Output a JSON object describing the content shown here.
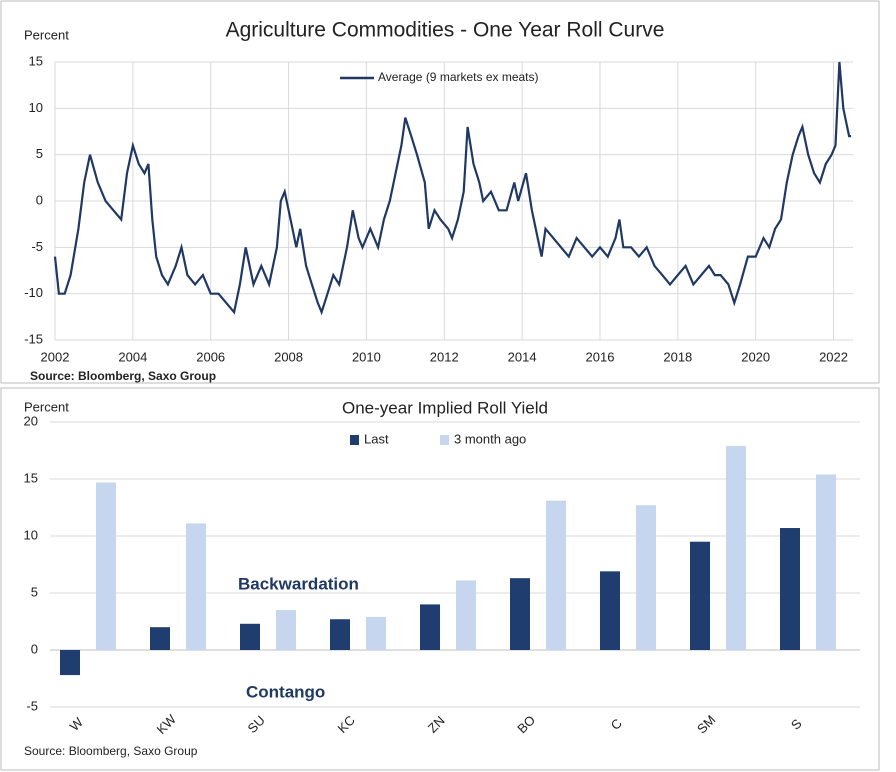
{
  "chart_data": [
    {
      "type": "line",
      "title": "Agriculture Commodities - One Year Roll Curve",
      "y_label": "Percent",
      "source": "Source: Bloomberg, Saxo Group",
      "x": [
        2002.0,
        2002.1,
        2002.25,
        2002.4,
        2002.6,
        2002.75,
        2002.9,
        2003.1,
        2003.3,
        2003.5,
        2003.7,
        2003.85,
        2004.0,
        2004.15,
        2004.3,
        2004.4,
        2004.5,
        2004.6,
        2004.75,
        2004.9,
        2005.1,
        2005.25,
        2005.4,
        2005.6,
        2005.8,
        2006.0,
        2006.2,
        2006.4,
        2006.6,
        2006.75,
        2006.9,
        2007.1,
        2007.3,
        2007.5,
        2007.7,
        2007.8,
        2007.9,
        2008.1,
        2008.2,
        2008.3,
        2008.45,
        2008.6,
        2008.75,
        2008.85,
        2009.0,
        2009.15,
        2009.3,
        2009.5,
        2009.65,
        2009.8,
        2009.9,
        2010.1,
        2010.3,
        2010.45,
        2010.6,
        2010.75,
        2010.9,
        2011.0,
        2011.15,
        2011.3,
        2011.5,
        2011.6,
        2011.75,
        2011.9,
        2012.1,
        2012.2,
        2012.35,
        2012.5,
        2012.6,
        2012.75,
        2012.9,
        2013.0,
        2013.2,
        2013.4,
        2013.6,
        2013.8,
        2013.9,
        2014.1,
        2014.25,
        2014.4,
        2014.5,
        2014.6,
        2014.8,
        2015.0,
        2015.2,
        2015.4,
        2015.6,
        2015.8,
        2016.0,
        2016.2,
        2016.4,
        2016.5,
        2016.6,
        2016.8,
        2017.0,
        2017.2,
        2017.4,
        2017.6,
        2017.8,
        2018.0,
        2018.2,
        2018.4,
        2018.6,
        2018.8,
        2018.95,
        2019.1,
        2019.3,
        2019.45,
        2019.6,
        2019.8,
        2020.0,
        2020.2,
        2020.35,
        2020.5,
        2020.65,
        2020.8,
        2020.95,
        2021.1,
        2021.2,
        2021.35,
        2021.5,
        2021.65,
        2021.8,
        2021.95,
        2022.05,
        2022.15,
        2022.25,
        2022.4,
        2022.45
      ],
      "series": [
        {
          "name": "Average (9 markets ex meats)",
          "color": "#1f3864",
          "values": [
            -6,
            -10,
            -10,
            -8,
            -3,
            2,
            5,
            2,
            0,
            -1,
            -2,
            3,
            6,
            4,
            3,
            4,
            -2,
            -6,
            -8,
            -9,
            -7,
            -5,
            -8,
            -9,
            -8,
            -10,
            -10,
            -11,
            -12,
            -9,
            -5,
            -9,
            -7,
            -9,
            -5,
            0,
            1,
            -3,
            -5,
            -3,
            -7,
            -9,
            -11,
            -12,
            -10,
            -8,
            -9,
            -5,
            -1,
            -4,
            -5,
            -3,
            -5,
            -2,
            0,
            3,
            6,
            9,
            7,
            5,
            2,
            -3,
            -1,
            -2,
            -3,
            -4,
            -2,
            1,
            8,
            4,
            2,
            0,
            1,
            -1,
            -1,
            2,
            0,
            3,
            -1,
            -4,
            -6,
            -3,
            -4,
            -5,
            -6,
            -4,
            -5,
            -6,
            -5,
            -6,
            -4,
            -2,
            -5,
            -5,
            -6,
            -5,
            -7,
            -8,
            -9,
            -8,
            -7,
            -9,
            -8,
            -7,
            -8,
            -8,
            -9,
            -11,
            -9,
            -6,
            -6,
            -4,
            -5,
            -3,
            -2,
            2,
            5,
            7,
            8,
            5,
            3,
            2,
            4,
            5,
            6,
            15,
            10,
            7,
            7
          ]
        }
      ],
      "xlim": [
        2002,
        2022.5
      ],
      "xticks": [
        2002,
        2004,
        2006,
        2008,
        2010,
        2012,
        2014,
        2016,
        2018,
        2020,
        2022
      ],
      "ylim": [
        -15,
        15
      ],
      "yticks": [
        -15,
        -10,
        -5,
        0,
        5,
        10,
        15
      ],
      "grid": true
    },
    {
      "type": "bar",
      "title": "One-year Implied Roll Yield",
      "y_label": "Percent",
      "source": "Source: Bloomberg, Saxo Group",
      "annotations": [
        "Backwardation",
        "Contango"
      ],
      "categories": [
        "W",
        "KW",
        "SU",
        "KC",
        "ZN",
        "BO",
        "C",
        "SM",
        "S"
      ],
      "series": [
        {
          "name": "Last",
          "color": "#1f3d6e",
          "values": [
            -2.2,
            2.0,
            2.3,
            2.7,
            4.0,
            6.3,
            6.9,
            9.5,
            10.7
          ]
        },
        {
          "name": "3 month ago",
          "color": "#c5d6ee",
          "values": [
            14.7,
            11.1,
            3.5,
            2.9,
            6.1,
            13.1,
            12.7,
            17.9,
            15.4
          ]
        }
      ],
      "ylim": [
        -5,
        20
      ],
      "yticks": [
        -5,
        0,
        5,
        10,
        15,
        20
      ],
      "grid": true
    }
  ]
}
